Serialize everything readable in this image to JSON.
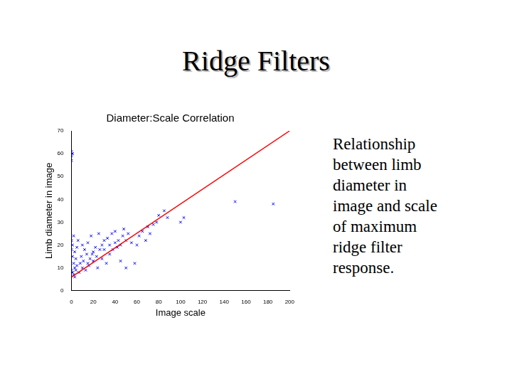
{
  "slide": {
    "title": "Ridge Filters",
    "text": [
      "Relationship",
      "between limb",
      "diameter in",
      "image and scale",
      "of maximum",
      "ridge filter",
      "response."
    ]
  },
  "chart_data": {
    "type": "scatter",
    "title": "Diameter:Scale Correlation",
    "x_label": "Image scale",
    "y_label": "Limb diameter in image",
    "xlim": [
      0,
      200
    ],
    "xticks": [
      0,
      20,
      40,
      60,
      80,
      100,
      120,
      140,
      160,
      180,
      200
    ],
    "ylim": [
      0,
      70
    ],
    "yticks": [
      0,
      10,
      20,
      30,
      40,
      50,
      60,
      70
    ],
    "grid": false,
    "series": [
      {
        "type": "scatter",
        "color": "#0000ff",
        "marker": "x",
        "x": [
          0,
          0,
          0,
          1,
          0,
          1,
          2,
          0,
          1,
          2,
          3,
          0,
          1,
          2,
          3,
          4,
          5,
          4,
          3,
          5,
          6,
          7,
          8,
          9,
          10,
          10,
          11,
          12,
          13,
          14,
          15,
          15,
          16,
          17,
          18,
          19,
          20,
          20,
          22,
          23,
          24,
          25,
          26,
          28,
          28,
          30,
          30,
          32,
          33,
          35,
          35,
          37,
          38,
          40,
          40,
          42,
          43,
          45,
          45,
          47,
          48,
          50,
          50,
          52,
          55,
          58,
          60,
          62,
          65,
          68,
          70,
          72,
          75,
          78,
          80,
          85,
          88,
          100,
          103,
          150,
          185
        ],
        "values": [
          61,
          59,
          57,
          60,
          22,
          20,
          24,
          18,
          15,
          12,
          10,
          9,
          8,
          7,
          6,
          9,
          11,
          14,
          17,
          19,
          22,
          8,
          12,
          15,
          20,
          10,
          13,
          18,
          9,
          16,
          21,
          12,
          11,
          14,
          24,
          16,
          17,
          13,
          19,
          15,
          10,
          25,
          18,
          20,
          14,
          18,
          22,
          12,
          23,
          20,
          16,
          25,
          18,
          21,
          26,
          19,
          22,
          20,
          13,
          24,
          27,
          10,
          22,
          25,
          21,
          12,
          20,
          24,
          26,
          22,
          28,
          25,
          29,
          30,
          33,
          35,
          32,
          30,
          32,
          39,
          38
        ]
      },
      {
        "type": "line",
        "color": "#ff0000",
        "line_style": "solid",
        "x": [
          0,
          200
        ],
        "values": [
          6,
          70
        ]
      }
    ]
  }
}
